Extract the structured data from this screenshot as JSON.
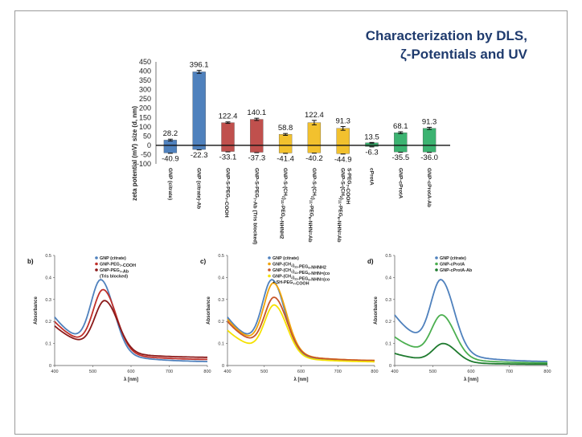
{
  "slide": {
    "title_line1": "Characterization by DLS,",
    "title_line2": "ζ-Potentials and  UV"
  },
  "chart_data": [
    {
      "type": "bar",
      "categories": [
        "GNP (citrate)",
        "GNP (citrate)-Ab",
        "GNP-S-PEG7-COOH",
        "GNP-S-PEG7-Ab (Tris blocked)",
        "GNP-S-(CH2)11-PEG6-NHNH2",
        "GNP-S-(CH2)11-PEG6-NHN=Ab",
        "GNP-S-(CH2)11-PEG6-NHN=Ab / S-PEG7-COOH",
        "cProtA",
        "GNP-cProtA",
        "GNP-cProtA-Ab"
      ],
      "series": [
        {
          "values": [
            28.2,
            396.1,
            122.4,
            140.1,
            58.8,
            122.4,
            91.3,
            13.5,
            68.1,
            91.3
          ],
          "errors": [
            5,
            8,
            4,
            6,
            5,
            12,
            10,
            2,
            5,
            6
          ]
        },
        {
          "values": [
            -40.9,
            -22.3,
            -33.1,
            -37.3,
            -41.4,
            -40.2,
            -44.9,
            -6.3,
            -35.5,
            -36.0
          ]
        }
      ],
      "value_labels_top": [
        "28.2",
        "396.1",
        "122.4",
        "140.1",
        "58.8",
        "122.4",
        "91.3",
        "13.5",
        "68.1",
        "91.3"
      ],
      "value_labels_bottom": [
        "-40.9",
        "-22.3",
        "-33.1",
        "-37.3",
        "-41.4",
        "-40.2",
        "-44.9",
        "-6.3",
        "-35.5",
        "-36.0"
      ],
      "bar_colors": [
        "#4f81bd",
        "#4f81bd",
        "#c0504d",
        "#c0504d",
        "#f2c12e",
        "#f2c12e",
        "#f2c12e",
        "#3cb371",
        "#3cb371",
        "#3cb371"
      ],
      "ylabel_top": "size (d, nm)",
      "ylabel_bottom": "zeta potential (mV)",
      "yticks": [
        450,
        400,
        350,
        300,
        250,
        200,
        150,
        100,
        50,
        0,
        -50,
        -100
      ],
      "ylim": [
        -100,
        450
      ]
    },
    {
      "type": "line",
      "panel": "b)",
      "xlabel": "λ [nm]",
      "ylabel": "Absorbance",
      "xlim": [
        400,
        800
      ],
      "ylim": [
        0,
        0.5
      ],
      "xticks": [
        400,
        500,
        600,
        700,
        800
      ],
      "yticks": [
        0,
        0.1,
        0.2,
        0.3,
        0.4,
        0.5
      ],
      "series": [
        {
          "name": "GNP (citrate)",
          "color": "#4f81bd",
          "peak": 0.39,
          "peak_x": 522,
          "base": 0.22,
          "tail": 0.015
        },
        {
          "name": "GNP-PEG7-COOH",
          "color": "#c0302a",
          "peak": 0.345,
          "peak_x": 528,
          "base": 0.2,
          "tail": 0.025
        },
        {
          "name": "GNP-PEG7-Ab (Tris blocked)",
          "color": "#8b1a1a",
          "peak": 0.295,
          "peak_x": 532,
          "base": 0.18,
          "tail": 0.035
        }
      ],
      "legend": [
        "GNP (citrate)",
        "GNP-PEG7-COOH",
        "GNP-PEG7-Ab",
        "(Tris blocked)"
      ]
    },
    {
      "type": "line",
      "panel": "c)",
      "xlabel": "λ [nm]",
      "ylabel": "Absorbance",
      "xlim": [
        400,
        800
      ],
      "ylim": [
        0,
        0.5
      ],
      "xticks": [
        400,
        500,
        600,
        700,
        800
      ],
      "yticks": [
        0,
        0.1,
        0.2,
        0.3,
        0.4,
        0.5
      ],
      "series": [
        {
          "name": "GNP (citrate)",
          "color": "#4f81bd",
          "peak": 0.39,
          "peak_x": 522,
          "base": 0.22,
          "tail": 0.015
        },
        {
          "name": "GNP-(CH2)11-PEG6-NHNH2",
          "color": "#f0a30a",
          "peak": 0.375,
          "peak_x": 526,
          "base": 0.21,
          "tail": 0.02
        },
        {
          "name": "GNP-(CH2)11-PEG6-NHN=(cone)",
          "color": "#c8562a",
          "peak": 0.31,
          "peak_x": 528,
          "base": 0.2,
          "tail": 0.02
        },
        {
          "name": "GNP-(CH2)11-PEG6-NHN=(cone) + SH-PEG7-COOH",
          "color": "#f5e100",
          "peak": 0.275,
          "peak_x": 528,
          "base": 0.16,
          "tail": 0.015
        }
      ],
      "legend": [
        "GNP (citrate)",
        "GNP-(CH2)11-PEG6-NHNH2",
        "GNP-(CH2)11-PEG6-NHN=(co",
        "GNP-(CH2)11-PEG6-NHN=(co",
        "+ SH-PEG7-COOH"
      ]
    },
    {
      "type": "line",
      "panel": "d)",
      "xlabel": "λ [nm]",
      "ylabel": "Absorbance",
      "xlim": [
        400,
        800
      ],
      "ylim": [
        0,
        0.5
      ],
      "xticks": [
        400,
        500,
        600,
        700,
        800
      ],
      "yticks": [
        0,
        0.1,
        0.2,
        0.3,
        0.4,
        0.5
      ],
      "series": [
        {
          "name": "GNP (citrate)",
          "color": "#4f81bd",
          "peak": 0.39,
          "peak_x": 522,
          "base": 0.23,
          "tail": 0.015
        },
        {
          "name": "GNP-cProtA",
          "color": "#4caf50",
          "peak": 0.23,
          "peak_x": 524,
          "base": 0.13,
          "tail": 0.01
        },
        {
          "name": "GNP-cProtA-Ab",
          "color": "#1e7a2e",
          "peak": 0.1,
          "peak_x": 528,
          "base": 0.055,
          "tail": 0.005
        }
      ],
      "legend": [
        "GNP (citrate)",
        "GNP-cProtA",
        "GNP-cProtA-Ab"
      ]
    }
  ]
}
